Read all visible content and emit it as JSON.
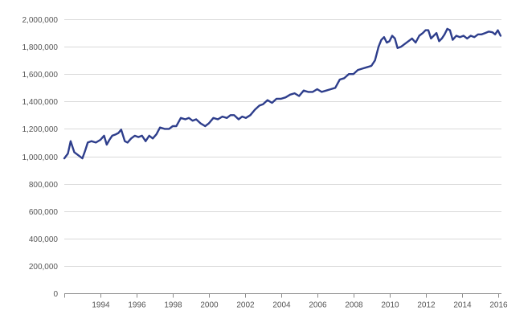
{
  "chart_data": {
    "type": "line",
    "title": "",
    "xlabel": "",
    "ylabel": "",
    "xlim": [
      1992.0,
      2016.2
    ],
    "ylim": [
      0,
      2000000
    ],
    "grid": true,
    "legend": "none",
    "line_color": "#2e3e8c",
    "yticks": [
      0,
      200000,
      400000,
      600000,
      800000,
      1000000,
      1200000,
      1400000,
      1600000,
      1800000,
      2000000
    ],
    "ytick_labels": [
      "0",
      "200,000",
      "400,000",
      "600,000",
      "800,000",
      "1,000,000",
      "1,200,000",
      "1,400,000",
      "1,600,000",
      "1,800,000",
      "2,000,000"
    ],
    "xticks": [
      1994,
      1996,
      1998,
      2000,
      2002,
      2004,
      2006,
      2008,
      2010,
      2012,
      2014,
      2016
    ],
    "xtick_labels": [
      "1994",
      "1996",
      "1998",
      "2000",
      "2002",
      "2004",
      "2006",
      "2008",
      "2010",
      "2012",
      "2014",
      "2016"
    ],
    "series": [
      {
        "x": [
          1992.0,
          1992.2,
          1992.35,
          1992.55,
          1992.75,
          1993.0,
          1993.15,
          1993.3,
          1993.5,
          1993.75,
          1994.0,
          1994.2,
          1994.35,
          1994.5,
          1994.65,
          1994.85,
          1995.0,
          1995.15,
          1995.35,
          1995.5,
          1995.7,
          1995.9,
          1996.1,
          1996.3,
          1996.5,
          1996.7,
          1996.9,
          1997.1,
          1997.3,
          1997.55,
          1997.8,
          1998.0,
          1998.2,
          1998.45,
          1998.7,
          1998.9,
          1999.1,
          1999.3,
          1999.55,
          1999.8,
          2000.0,
          2000.25,
          2000.5,
          2000.75,
          2001.0,
          2001.2,
          2001.4,
          2001.65,
          2001.85,
          2002.05,
          2002.3,
          2002.55,
          2002.8,
          2003.0,
          2003.25,
          2003.5,
          2003.75,
          2004.0,
          2004.25,
          2004.5,
          2004.75,
          2005.0,
          2005.25,
          2005.5,
          2005.75,
          2006.0,
          2006.25,
          2006.5,
          2006.75,
          2007.0,
          2007.25,
          2007.5,
          2007.75,
          2008.0,
          2008.25,
          2008.5,
          2008.75,
          2009.0,
          2009.2,
          2009.4,
          2009.55,
          2009.7,
          2009.85,
          2010.0,
          2010.15,
          2010.3,
          2010.45,
          2010.65,
          2010.85,
          2011.05,
          2011.25,
          2011.45,
          2011.65,
          2011.85,
          2012.0,
          2012.15,
          2012.3,
          2012.45,
          2012.6,
          2012.75,
          2012.9,
          2013.05,
          2013.2,
          2013.35,
          2013.5,
          2013.7,
          2013.9,
          2014.1,
          2014.3,
          2014.5,
          2014.7,
          2014.9,
          2015.1,
          2015.3,
          2015.5,
          2015.7,
          2015.85,
          2016.0,
          2016.15
        ],
        "y": [
          985000,
          1020000,
          1110000,
          1030000,
          1010000,
          985000,
          1040000,
          1100000,
          1110000,
          1100000,
          1120000,
          1150000,
          1085000,
          1120000,
          1150000,
          1160000,
          1170000,
          1195000,
          1110000,
          1100000,
          1130000,
          1150000,
          1140000,
          1150000,
          1110000,
          1150000,
          1130000,
          1160000,
          1210000,
          1200000,
          1200000,
          1220000,
          1220000,
          1280000,
          1270000,
          1280000,
          1260000,
          1270000,
          1240000,
          1220000,
          1240000,
          1280000,
          1270000,
          1290000,
          1280000,
          1300000,
          1300000,
          1270000,
          1290000,
          1280000,
          1300000,
          1340000,
          1370000,
          1380000,
          1410000,
          1390000,
          1420000,
          1420000,
          1430000,
          1450000,
          1460000,
          1440000,
          1480000,
          1470000,
          1470000,
          1490000,
          1470000,
          1480000,
          1490000,
          1500000,
          1560000,
          1570000,
          1600000,
          1600000,
          1630000,
          1640000,
          1650000,
          1660000,
          1700000,
          1800000,
          1850000,
          1870000,
          1830000,
          1840000,
          1880000,
          1860000,
          1790000,
          1800000,
          1820000,
          1840000,
          1860000,
          1830000,
          1880000,
          1900000,
          1920000,
          1920000,
          1860000,
          1880000,
          1900000,
          1840000,
          1860000,
          1890000,
          1930000,
          1920000,
          1850000,
          1880000,
          1870000,
          1880000,
          1860000,
          1880000,
          1870000,
          1890000,
          1890000,
          1900000,
          1910000,
          1905000,
          1890000,
          1920000,
          1880000
        ]
      }
    ]
  }
}
